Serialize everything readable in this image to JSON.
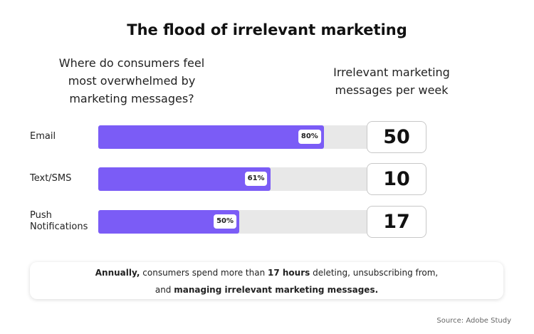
{
  "chart_data": {
    "type": "hbar",
    "title": "The flood of irrelevant marketing",
    "subtitle_lines": [
      "Where do consumers feel",
      "most overwhelmed by",
      "marketing messages?"
    ],
    "categories": [
      "Email",
      "Text/SMS",
      "Push Notifications"
    ],
    "values": [
      80,
      61,
      50
    ],
    "value_labels": [
      "80%",
      "61%",
      "50%"
    ],
    "xlim": [
      0,
      100
    ],
    "color": "#7b5cf6",
    "weekly": {
      "title_lines": [
        "Irrelevant marketing",
        "messages per week"
      ],
      "values": [
        50,
        10,
        17
      ]
    },
    "note": [
      [
        {
          "text": "Annually,",
          "bold": true
        },
        {
          "text": " consumers spend more than ",
          "bold": false
        },
        {
          "text": "17 hours",
          "bold": true
        },
        {
          "text": " deleting, unsubscribing from,",
          "bold": false
        }
      ],
      [
        {
          "text": "and ",
          "bold": false
        },
        {
          "text": "managing irrelevant marketing messages.",
          "bold": true
        }
      ]
    ],
    "source": "Source: Adobe Study"
  }
}
